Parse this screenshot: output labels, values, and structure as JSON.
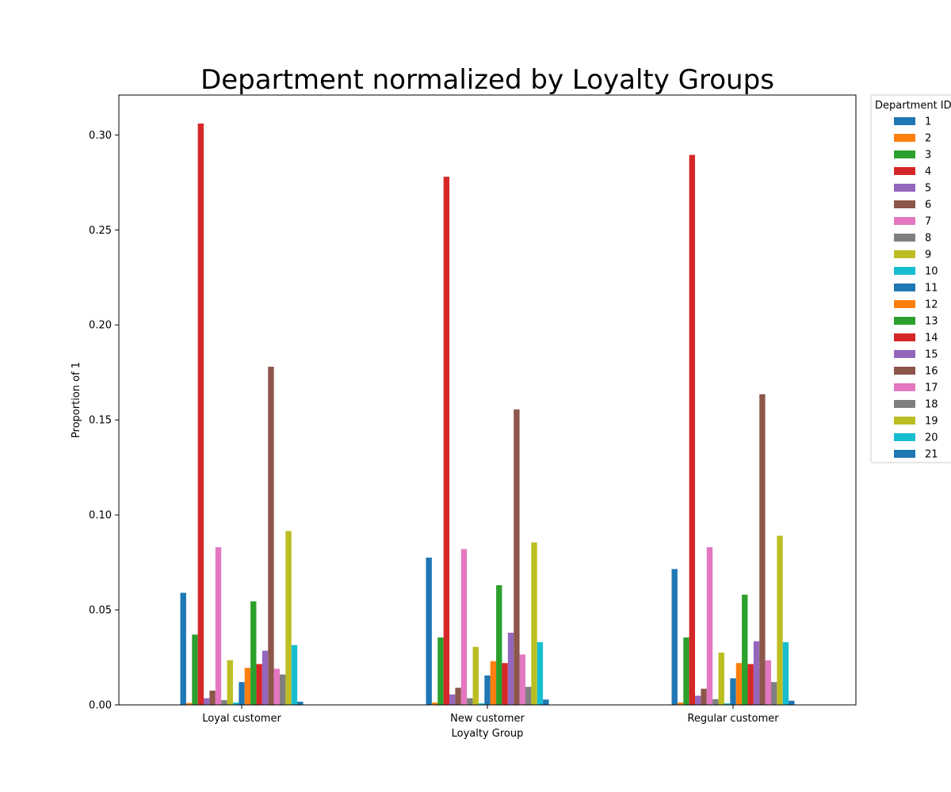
{
  "chart_data": {
    "type": "bar",
    "title": "Department normalized by Loyalty Groups",
    "xlabel": "Loyalty Group",
    "ylabel": "Proportion of 1",
    "categories": [
      "Loyal customer",
      "New customer",
      "Regular customer"
    ],
    "ylim": [
      0,
      0.321
    ],
    "yticks": [
      "0.00",
      "0.05",
      "0.10",
      "0.15",
      "0.20",
      "0.25",
      "0.30"
    ],
    "grid": false,
    "legend": {
      "title": "Department ID",
      "placement": "outside-upper-right"
    },
    "series": [
      {
        "name": "1",
        "color": "#1f77b4",
        "values": [
          0.059,
          0.0775,
          0.0715
        ]
      },
      {
        "name": "2",
        "color": "#ff7f0e",
        "values": [
          0.001,
          0.0012,
          0.0012
        ]
      },
      {
        "name": "3",
        "color": "#2ca02c",
        "values": [
          0.037,
          0.0355,
          0.0355
        ]
      },
      {
        "name": "4",
        "color": "#d62728",
        "values": [
          0.306,
          0.278,
          0.2895
        ]
      },
      {
        "name": "5",
        "color": "#9467bd",
        "values": [
          0.0035,
          0.0055,
          0.0048
        ]
      },
      {
        "name": "6",
        "color": "#8c564b",
        "values": [
          0.0075,
          0.009,
          0.0085
        ]
      },
      {
        "name": "7",
        "color": "#e377c2",
        "values": [
          0.083,
          0.082,
          0.083
        ]
      },
      {
        "name": "8",
        "color": "#7f7f7f",
        "values": [
          0.0025,
          0.0035,
          0.003
        ]
      },
      {
        "name": "9",
        "color": "#bcbd22",
        "values": [
          0.0235,
          0.0305,
          0.0275
        ]
      },
      {
        "name": "10",
        "color": "#17becf",
        "values": [
          0.0012,
          0.0008,
          0.0008
        ]
      },
      {
        "name": "11",
        "color": "#1f77b4",
        "values": [
          0.012,
          0.0155,
          0.014
        ]
      },
      {
        "name": "12",
        "color": "#ff7f0e",
        "values": [
          0.0195,
          0.023,
          0.022
        ]
      },
      {
        "name": "13",
        "color": "#2ca02c",
        "values": [
          0.0545,
          0.063,
          0.058
        ]
      },
      {
        "name": "14",
        "color": "#d62728",
        "values": [
          0.0215,
          0.022,
          0.0215
        ]
      },
      {
        "name": "15",
        "color": "#9467bd",
        "values": [
          0.0285,
          0.038,
          0.0335
        ]
      },
      {
        "name": "16",
        "color": "#8c564b",
        "values": [
          0.178,
          0.1555,
          0.1635
        ]
      },
      {
        "name": "17",
        "color": "#e377c2",
        "values": [
          0.019,
          0.0265,
          0.0235
        ]
      },
      {
        "name": "18",
        "color": "#7f7f7f",
        "values": [
          0.016,
          0.0095,
          0.012
        ]
      },
      {
        "name": "19",
        "color": "#bcbd22",
        "values": [
          0.0915,
          0.0855,
          0.089
        ]
      },
      {
        "name": "20",
        "color": "#17becf",
        "values": [
          0.0315,
          0.033,
          0.033
        ]
      },
      {
        "name": "21",
        "color": "#1f77b4",
        "values": [
          0.0017,
          0.0028,
          0.0022
        ]
      }
    ]
  }
}
